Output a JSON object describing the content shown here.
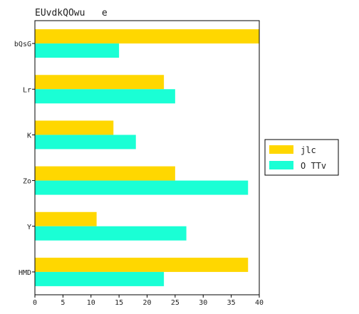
{
  "chart_data": {
    "type": "bar",
    "orientation": "horizontal",
    "title": "EUvdkQOwu   e",
    "categories": [
      "bQsG",
      "Lr",
      "K",
      "Zo",
      "Y",
      "HMD"
    ],
    "series": [
      {
        "name": "jlc",
        "color": "#FFD700",
        "values": [
          40,
          23,
          14,
          25,
          11,
          38
        ]
      },
      {
        "name": "O TTv",
        "color": "#1AFFD5",
        "values": [
          15,
          25,
          18,
          38,
          27,
          23
        ]
      }
    ],
    "xlim": [
      0,
      40
    ],
    "xticks": [
      0,
      5,
      10,
      15,
      20,
      25,
      30,
      35,
      40
    ],
    "grid": false,
    "legend_position": "right"
  }
}
